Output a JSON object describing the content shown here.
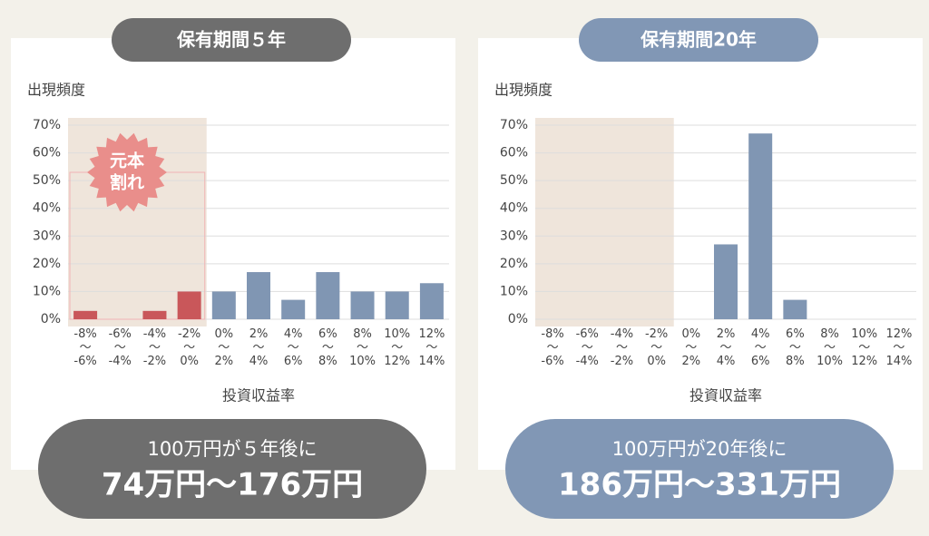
{
  "chart_data": [
    {
      "type": "bar",
      "title": "保有期間５年",
      "y_label": "出現頻度",
      "x_label": "投資収益率",
      "categories": [
        "-8%〜-6%",
        "-6%〜-4%",
        "-4%〜-2%",
        "-2%〜0%",
        "0%〜2%",
        "2%〜4%",
        "4%〜6%",
        "6%〜8%",
        "8%〜10%",
        "10%〜12%",
        "12%〜14%"
      ],
      "values": [
        3,
        0,
        3,
        10,
        10,
        17,
        7,
        17,
        10,
        10,
        13
      ],
      "colors": [
        "#c9575a",
        "#c9575a",
        "#c9575a",
        "#c9575a",
        "#8096b3",
        "#8096b3",
        "#8096b3",
        "#8096b3",
        "#8096b3",
        "#8096b3",
        "#8096b3"
      ],
      "ylim": [
        0,
        70
      ],
      "yticks": [
        {
          "value": 0,
          "label": "0%"
        },
        {
          "value": 10,
          "label": "10%"
        },
        {
          "value": 20,
          "label": "20%"
        },
        {
          "value": 30,
          "label": "30%"
        },
        {
          "value": 40,
          "label": "40%"
        },
        {
          "value": 50,
          "label": "50%"
        },
        {
          "value": 60,
          "label": "60%"
        },
        {
          "value": 70,
          "label": "70%"
        }
      ],
      "grid": true,
      "annotation_lines": [
        "元本",
        "割れ"
      ],
      "accent_color": "#6e6e6e",
      "summary": [
        "100万円が５年後に",
        "74万円〜176万円"
      ]
    },
    {
      "type": "bar",
      "title": "保有期間20年",
      "y_label": "出現頻度",
      "x_label": "投資収益率",
      "categories": [
        "-8%〜-6%",
        "-6%〜-4%",
        "-4%〜-2%",
        "-2%〜0%",
        "0%〜2%",
        "2%〜4%",
        "4%〜6%",
        "6%〜8%",
        "8%〜10%",
        "10%〜12%",
        "12%〜14%"
      ],
      "values": [
        0,
        0,
        0,
        0,
        0,
        27,
        67,
        7,
        0,
        0,
        0
      ],
      "colors": [
        "#8096b3",
        "#8096b3",
        "#8096b3",
        "#8096b3",
        "#8096b3",
        "#8096b3",
        "#8096b3",
        "#8096b3",
        "#8096b3",
        "#8096b3",
        "#8096b3"
      ],
      "ylim": [
        0,
        70
      ],
      "yticks": [
        {
          "value": 0,
          "label": "0%"
        },
        {
          "value": 10,
          "label": "10%"
        },
        {
          "value": 20,
          "label": "20%"
        },
        {
          "value": 30,
          "label": "30%"
        },
        {
          "value": 40,
          "label": "40%"
        },
        {
          "value": 50,
          "label": "50%"
        },
        {
          "value": 60,
          "label": "60%"
        },
        {
          "value": 70,
          "label": "70%"
        }
      ],
      "grid": true,
      "accent_color": "#8197b5",
      "summary": [
        "100万円が20年後に",
        "186万円〜331万円"
      ]
    }
  ]
}
